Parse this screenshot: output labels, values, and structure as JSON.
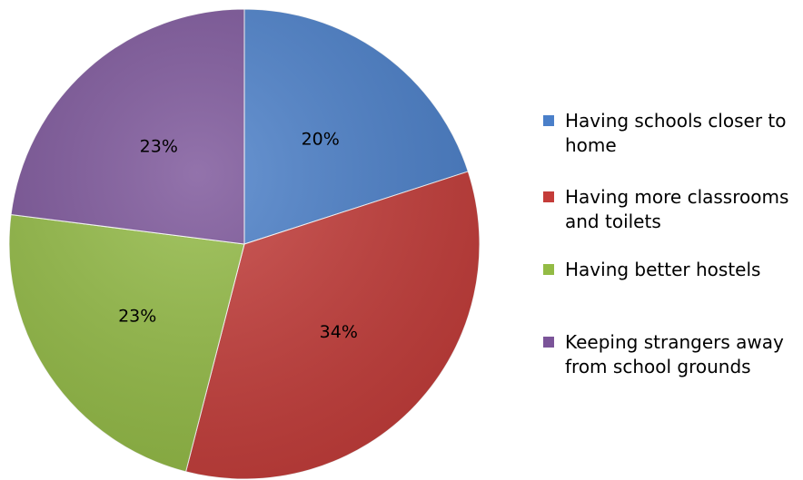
{
  "chart_data": {
    "type": "pie",
    "title": "",
    "slices": [
      {
        "label": "Having schools closer to home",
        "value": 20,
        "value_label": "20%",
        "color": "#4a7fc9"
      },
      {
        "label": "Having more classrooms and toilets",
        "value": 34,
        "value_label": "34%",
        "color": "#c43c39"
      },
      {
        "label": "Having better hostels",
        "value": 23,
        "value_label": "23%",
        "color": "#93bb45"
      },
      {
        "label": "Keeping strangers away from school grounds",
        "value": 23,
        "value_label": "23%",
        "color": "#7b5499"
      }
    ],
    "start_angle": "12 o'clock",
    "direction": "clockwise",
    "legend_position": "right"
  }
}
